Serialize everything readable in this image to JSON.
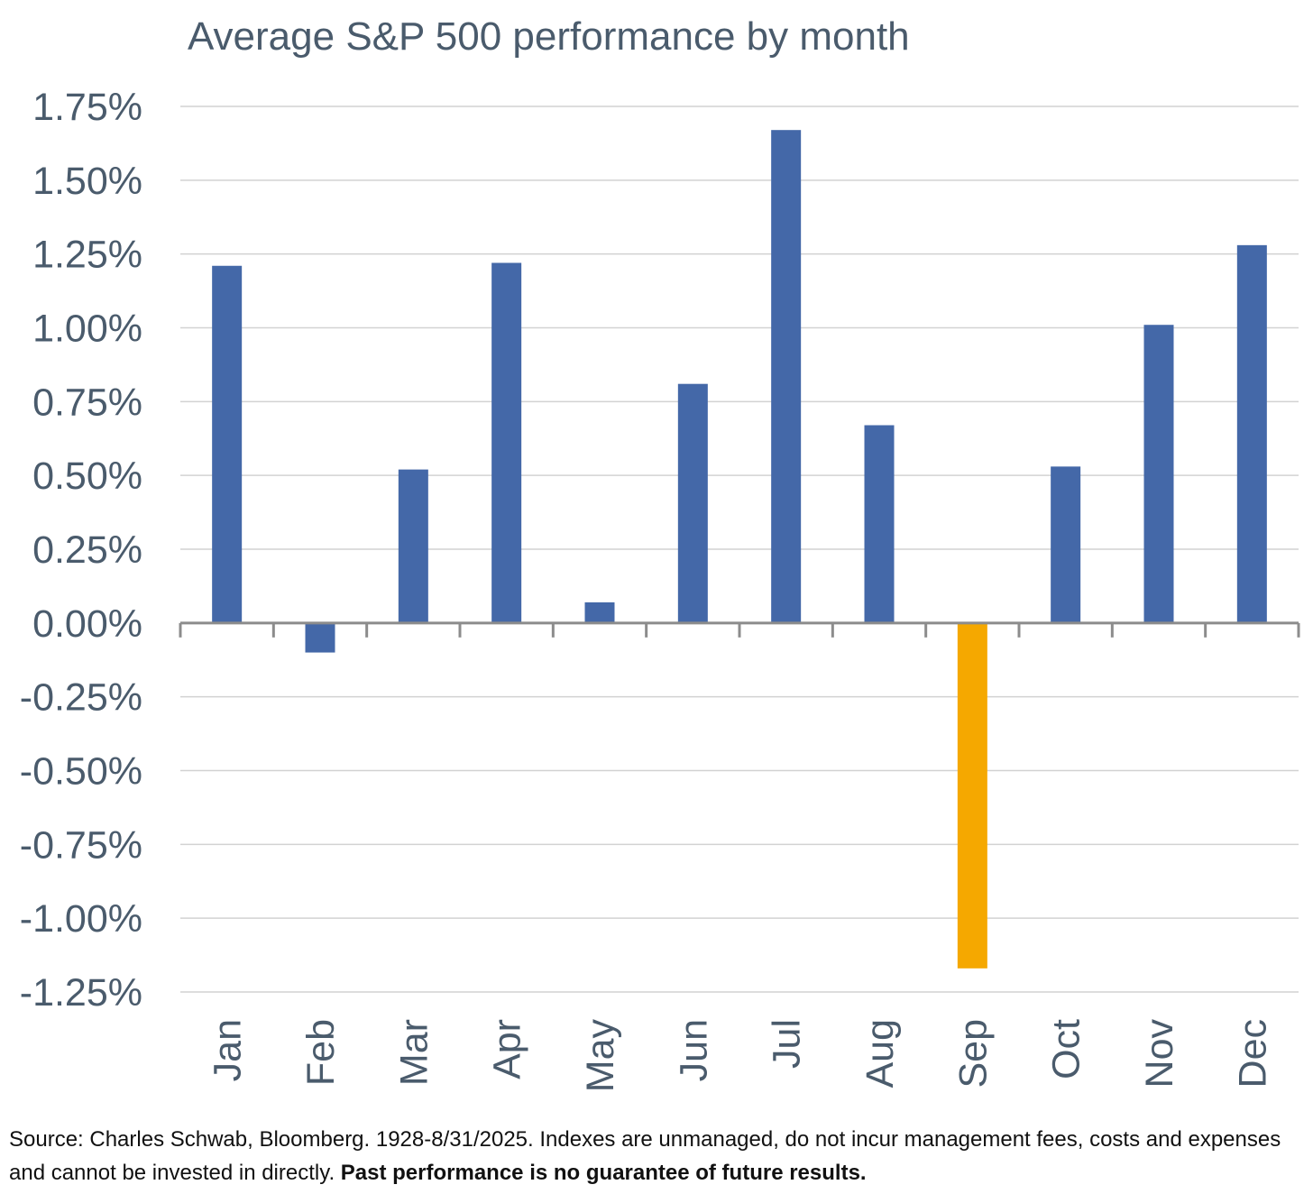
{
  "chart_data": {
    "type": "bar",
    "title": "Average S&P 500 performance by month",
    "xlabel": "",
    "ylabel": "",
    "categories": [
      "Jan",
      "Feb",
      "Mar",
      "Apr",
      "May",
      "Jun",
      "Jul",
      "Aug",
      "Sep",
      "Oct",
      "Nov",
      "Dec"
    ],
    "values": [
      1.21,
      -0.1,
      0.52,
      1.22,
      0.07,
      0.81,
      1.67,
      0.67,
      -1.17,
      0.53,
      1.01,
      1.28
    ],
    "value_unit": "%",
    "ylim": [
      -1.25,
      1.75
    ],
    "yticks": [
      "1.75%",
      "1.50%",
      "1.25%",
      "1.00%",
      "0.75%",
      "0.50%",
      "0.25%",
      "0.00%",
      "-0.25%",
      "-0.50%",
      "-0.75%",
      "-1.00%",
      "-1.25%"
    ],
    "ytick_values": [
      1.75,
      1.5,
      1.25,
      1.0,
      0.75,
      0.5,
      0.25,
      0.0,
      -0.25,
      -0.5,
      -0.75,
      -1.0,
      -1.25
    ],
    "grid": true,
    "legend": "none",
    "colors": {
      "default": "#4468a8",
      "highlight": "#f5a800",
      "highlight_category": "Sep",
      "grid": "#d2d2d2",
      "axis": "#8c8c8c",
      "text": "#4a5b6c"
    }
  },
  "footer": {
    "source": "Source: Charles Schwab, Bloomberg. 1928-8/31/2025. Indexes are unmanaged, do not incur management fees, costs and expenses and cannot be invested in directly. ",
    "disclaimer": "Past performance is no guarantee of future results."
  }
}
